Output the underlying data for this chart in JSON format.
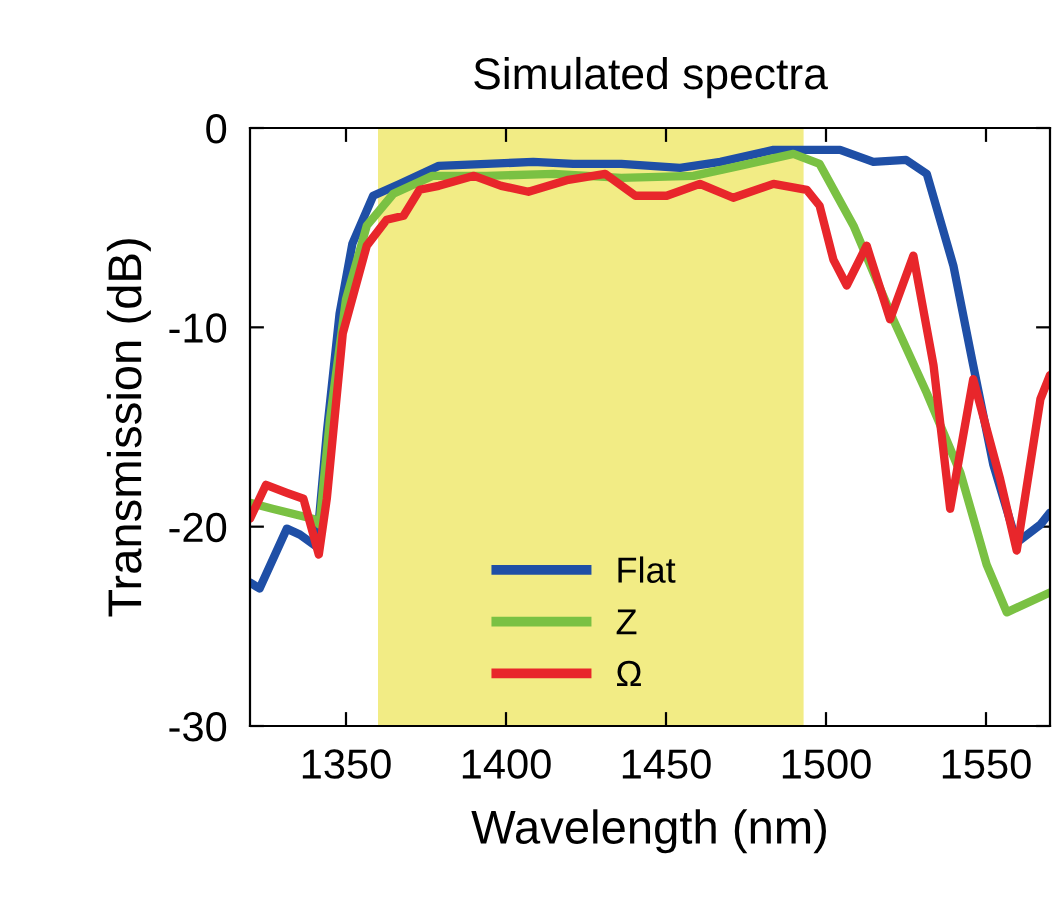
{
  "chart_data": {
    "type": "line",
    "title": "Simulated spectra",
    "xlabel": "Wavelength (nm)",
    "ylabel": "Transmission (dB)",
    "xlim": [
      1320,
      1570
    ],
    "xticks": [
      1350,
      1400,
      1450,
      1500,
      1550
    ],
    "ylim": [
      -30,
      0
    ],
    "yticks": [
      -30,
      -20,
      -10,
      0
    ],
    "grid": false,
    "legend": "bottom",
    "line_style": "solid",
    "marker": "none",
    "bands": [
      {
        "axis": "x",
        "from": 1360,
        "to": 1493,
        "color": "#f2ec85"
      }
    ],
    "series": [
      {
        "name": "Flat",
        "color": "#1f4fa6",
        "x": [
          1320,
          1323,
          1331.5,
          1335.6,
          1340.8,
          1344,
          1348,
          1352,
          1358.5,
          1366.9,
          1379,
          1394,
          1408.5,
          1421,
          1436,
          1454.4,
          1467,
          1483.6,
          1496,
          1504.4,
          1514.8,
          1525,
          1531.5,
          1539.8,
          1546,
          1552.3,
          1559.6,
          1567,
          1570
        ],
        "values": [
          -22.8,
          -23.1,
          -20.1,
          -20.4,
          -21,
          -15.3,
          -9.3,
          -5.8,
          -3.4,
          -2.8,
          -1.9,
          -1.8,
          -1.7,
          -1.8,
          -1.8,
          -2.0,
          -1.7,
          -1.1,
          -1.1,
          -1.1,
          -1.7,
          -1.6,
          -2.3,
          -6.9,
          -11.9,
          -16.9,
          -20.8,
          -19.9,
          -19.3
        ]
      },
      {
        "name": "Z",
        "color": "#7ac143",
        "x": [
          1320,
          1327,
          1339.6,
          1341.7,
          1345,
          1350,
          1356.5,
          1364.8,
          1377,
          1394,
          1415,
          1436,
          1458.6,
          1473,
          1489.8,
          1498,
          1508.6,
          1521,
          1531.5,
          1542,
          1550.2,
          1556.5,
          1570
        ],
        "values": [
          -18.8,
          -19.1,
          -19.6,
          -19.9,
          -14.6,
          -8.6,
          -4.9,
          -3.3,
          -2.4,
          -2.4,
          -2.3,
          -2.5,
          -2.4,
          -1.9,
          -1.3,
          -1.8,
          -4.9,
          -9.6,
          -13.3,
          -17.3,
          -21.9,
          -24.3,
          -23.3
        ]
      },
      {
        "name": "Ω",
        "color": "#e8262b",
        "x": [
          1320,
          1325,
          1331.5,
          1336.7,
          1341.5,
          1344,
          1349,
          1356.5,
          1362.7,
          1368,
          1373,
          1379,
          1390,
          1398.5,
          1407,
          1419.5,
          1431,
          1440.5,
          1450.2,
          1460.6,
          1471,
          1483.6,
          1494,
          1498,
          1502.3,
          1506.5,
          1512.7,
          1520,
          1527.3,
          1533.6,
          1538.8,
          1546,
          1554.4,
          1559.6,
          1567,
          1570
        ],
        "values": [
          -19.6,
          -17.9,
          -18.3,
          -18.6,
          -21.4,
          -18.6,
          -10.3,
          -5.9,
          -4.6,
          -4.4,
          -3.1,
          -2.9,
          -2.4,
          -2.9,
          -3.2,
          -2.6,
          -2.3,
          -3.4,
          -3.4,
          -2.8,
          -3.5,
          -2.8,
          -3.1,
          -3.9,
          -6.6,
          -7.9,
          -5.9,
          -9.6,
          -6.4,
          -11.9,
          -19.1,
          -12.6,
          -17.6,
          -21.2,
          -13.6,
          -12.4
        ]
      }
    ]
  }
}
